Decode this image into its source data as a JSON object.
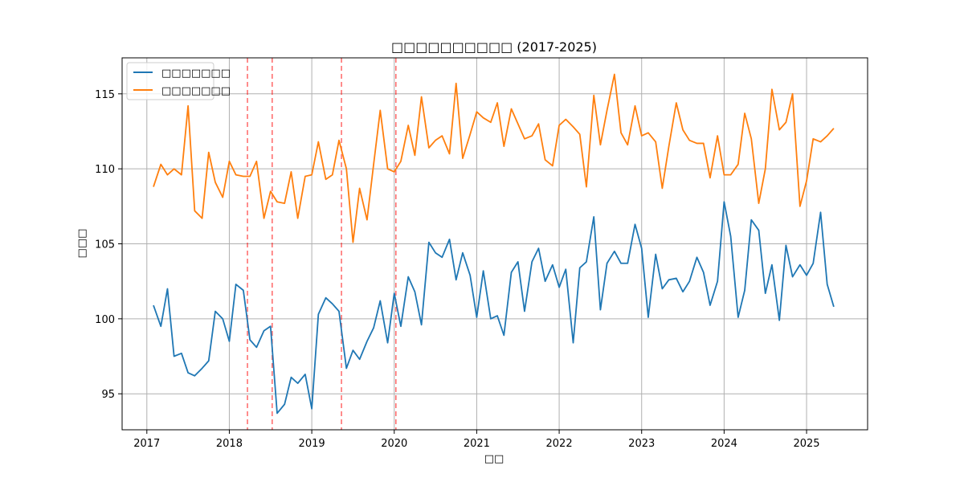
{
  "chart_data": {
    "type": "line",
    "title": "□□□□□□□□□□ (2017-2025)",
    "xlabel": "□□",
    "ylabel": "□□□",
    "xlim": [
      2016.7,
      2025.74
    ],
    "ylim": [
      92.6,
      117.4
    ],
    "x_ticks": [
      2017,
      2018,
      2019,
      2020,
      2021,
      2022,
      2023,
      2024,
      2025
    ],
    "y_ticks": [
      95,
      100,
      105,
      110,
      115
    ],
    "grid": true,
    "legend_position": "upper-left",
    "x": [
      2017.08,
      2017.17,
      2017.25,
      2017.33,
      2017.42,
      2017.5,
      2017.58,
      2017.67,
      2017.75,
      2017.83,
      2017.92,
      2018.0,
      2018.08,
      2018.17,
      2018.25,
      2018.33,
      2018.42,
      2018.5,
      2018.58,
      2018.67,
      2018.75,
      2018.83,
      2018.92,
      2019.0,
      2019.08,
      2019.17,
      2019.25,
      2019.33,
      2019.42,
      2019.5,
      2019.58,
      2019.67,
      2019.75,
      2019.83,
      2019.92,
      2020.0,
      2020.08,
      2020.17,
      2020.25,
      2020.33,
      2020.42,
      2020.5,
      2020.58,
      2020.67,
      2020.75,
      2020.83,
      2020.92,
      2021.0,
      2021.08,
      2021.17,
      2021.25,
      2021.33,
      2021.42,
      2021.5,
      2021.58,
      2021.67,
      2021.75,
      2021.83,
      2021.92,
      2022.0,
      2022.08,
      2022.17,
      2022.25,
      2022.33,
      2022.42,
      2022.5,
      2022.58,
      2022.67,
      2022.75,
      2022.83,
      2022.92,
      2023.0,
      2023.08,
      2023.17,
      2023.25,
      2023.33,
      2023.42,
      2023.5,
      2023.58,
      2023.67,
      2023.75,
      2023.83,
      2023.92,
      2024.0,
      2024.08,
      2024.17,
      2024.25,
      2024.33,
      2024.42,
      2024.5,
      2024.58,
      2024.67,
      2024.75,
      2024.83,
      2024.92,
      2025.0,
      2025.08,
      2025.17,
      2025.25,
      2025.33
    ],
    "series": [
      {
        "name": "□□□□□□□",
        "color": "#1f77b4",
        "values": [
          100.9,
          99.5,
          102.0,
          97.5,
          97.7,
          96.4,
          96.2,
          96.7,
          97.2,
          100.5,
          100.0,
          98.5,
          102.3,
          101.9,
          98.6,
          98.1,
          99.2,
          99.5,
          93.7,
          94.3,
          96.1,
          95.7,
          96.3,
          94.0,
          100.3,
          101.4,
          101.0,
          100.5,
          96.7,
          97.9,
          97.3,
          98.5,
          99.4,
          101.2,
          98.4,
          101.7,
          99.5,
          102.8,
          101.8,
          99.6,
          105.1,
          104.4,
          104.1,
          105.3,
          102.6,
          104.4,
          102.9,
          100.1,
          103.2,
          100.0,
          100.2,
          98.9,
          103.1,
          103.8,
          100.5,
          103.8,
          104.7,
          102.5,
          103.6,
          102.1,
          103.3,
          98.4,
          103.4,
          103.8,
          106.8,
          100.6,
          103.7,
          104.5,
          103.7,
          103.7,
          106.3,
          104.7,
          100.1,
          104.3,
          102.0,
          102.6,
          102.7,
          101.8,
          102.5,
          104.1,
          103.1,
          100.9,
          102.5,
          107.8,
          105.5,
          100.1,
          101.9,
          106.6,
          105.9,
          101.7,
          103.6,
          99.9,
          104.9,
          102.8,
          103.6,
          102.9,
          103.7,
          107.1,
          102.3,
          100.8
        ]
      },
      {
        "name": "□□□□□□□",
        "color": "#ff7f0e",
        "values": [
          108.8,
          110.3,
          109.6,
          110.0,
          109.6,
          114.2,
          107.2,
          106.7,
          111.1,
          109.1,
          108.1,
          110.5,
          109.6,
          109.5,
          109.5,
          110.5,
          106.7,
          108.5,
          107.8,
          107.7,
          109.8,
          106.7,
          109.5,
          109.6,
          111.8,
          109.3,
          109.6,
          111.9,
          110.0,
          105.1,
          108.7,
          106.6,
          110.3,
          113.9,
          110.0,
          109.8,
          110.5,
          112.9,
          110.9,
          114.8,
          111.4,
          111.9,
          112.2,
          111.0,
          115.7,
          110.7,
          112.3,
          113.8,
          113.4,
          113.1,
          114.4,
          111.5,
          114.0,
          113.0,
          112.0,
          112.2,
          113.0,
          110.6,
          110.2,
          112.9,
          113.3,
          112.8,
          112.3,
          108.8,
          114.9,
          111.6,
          113.9,
          116.3,
          112.4,
          111.6,
          114.2,
          112.2,
          112.4,
          111.8,
          108.7,
          111.5,
          114.4,
          112.6,
          111.9,
          111.7,
          111.7,
          109.4,
          112.2,
          109.6,
          109.6,
          110.3,
          113.7,
          112.0,
          107.7,
          110.0,
          115.3,
          112.6,
          113.1,
          115.0,
          107.5,
          109.2,
          112.0,
          111.8,
          112.2,
          112.7
        ]
      }
    ],
    "vertical_markers": {
      "color": "#ff6b6b",
      "style": "dashed",
      "x": [
        2018.22,
        2018.52,
        2019.36,
        2020.02
      ]
    }
  }
}
